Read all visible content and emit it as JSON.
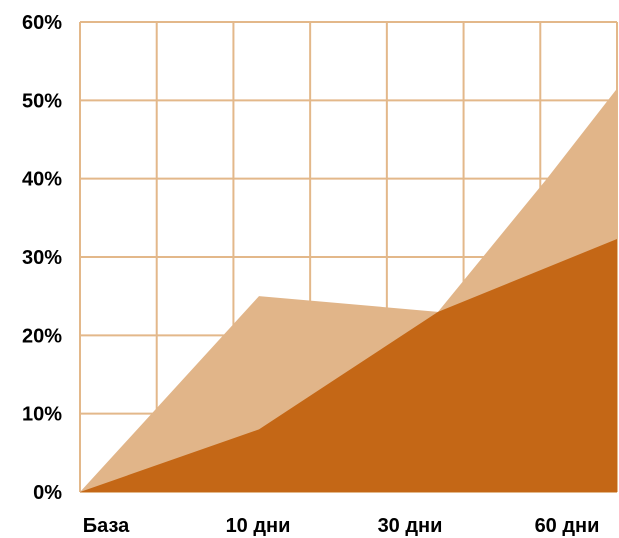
{
  "chart_data": {
    "type": "area",
    "x_ticks": [
      "База",
      "10 дни",
      "30 дни",
      "60 дни"
    ],
    "y_ticks": [
      "0%",
      "10%",
      "20%",
      "30%",
      "40%",
      "50%",
      "60%"
    ],
    "ylim": [
      0,
      60
    ],
    "grid": true,
    "series": [
      {
        "color": "#e1b589",
        "points": [
          [
            0,
            0
          ],
          [
            2.3,
            25
          ],
          [
            4.6,
            23
          ],
          [
            6,
            40
          ],
          [
            6.9,
            51.5
          ]
        ]
      },
      {
        "color": "#c46716",
        "points": [
          [
            0,
            0
          ],
          [
            2.3,
            8
          ],
          [
            4.6,
            23
          ],
          [
            6.9,
            32.3
          ]
        ]
      }
    ],
    "x_range": [
      0,
      6.9
    ]
  },
  "colors": {
    "grid": "#e3b88a",
    "background": "#ffffff"
  }
}
